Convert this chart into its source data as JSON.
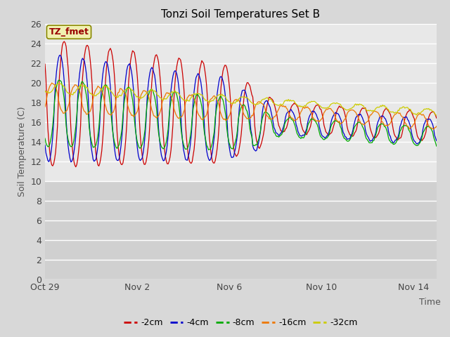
{
  "title": "Tonzi Soil Temperatures Set B",
  "xlabel": "Time",
  "ylabel": "Soil Temperature (C)",
  "ylim": [
    0,
    26
  ],
  "yticks": [
    0,
    2,
    4,
    6,
    8,
    10,
    12,
    14,
    16,
    18,
    20,
    22,
    24,
    26
  ],
  "fig_bg_color": "#d8d8d8",
  "plot_bg_upper": "#e8e8e8",
  "plot_bg_lower": "#d8d8d8",
  "grid_color": "#ffffff",
  "series": [
    {
      "label": "-2cm",
      "color": "#cc0000"
    },
    {
      "label": "-4cm",
      "color": "#0000cc"
    },
    {
      "label": "-8cm",
      "color": "#00aa00"
    },
    {
      "label": "-16cm",
      "color": "#ee7700"
    },
    {
      "label": "-32cm",
      "color": "#cccc00"
    }
  ],
  "xtick_labels": [
    "Oct 29",
    "Nov 2",
    "Nov 6",
    "Nov 10",
    "Nov 14"
  ],
  "xtick_positions": [
    0,
    4,
    8,
    12,
    16
  ],
  "n_days": 17,
  "pts_per_day": 24,
  "annotation_label": "TZ_fmet"
}
